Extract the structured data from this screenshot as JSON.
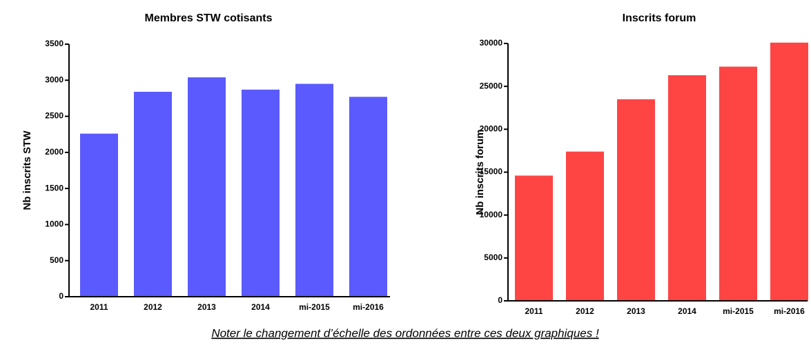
{
  "chart_data": [
    {
      "type": "bar",
      "title": "Membres STW cotisants",
      "y_label": "Nb inscrits STW",
      "categories": [
        "2011",
        "2012",
        "2013",
        "2014",
        "mi-2015",
        "mi-2016"
      ],
      "values": [
        2260,
        2840,
        3040,
        2870,
        2950,
        2770
      ],
      "color": "#5a5aff",
      "ylim": [
        0,
        3500
      ],
      "yticks": [
        0,
        500,
        1000,
        1500,
        2000,
        2500,
        3000,
        3500
      ]
    },
    {
      "type": "bar",
      "title": "Inscrits forum",
      "y_label": "Nb inscrits forum",
      "categories": [
        "2011",
        "2012",
        "2013",
        "2014",
        "mi-2015",
        "mi-2016"
      ],
      "values": [
        14600,
        17400,
        23500,
        26300,
        27300,
        30100
      ],
      "color": "#ff4444",
      "ylim": [
        0,
        30000
      ],
      "yticks": [
        0,
        5000,
        10000,
        15000,
        20000,
        25000,
        30000
      ]
    }
  ],
  "caption": "Noter le changement d’échelle des ordonnées entre ces deux graphiques !"
}
